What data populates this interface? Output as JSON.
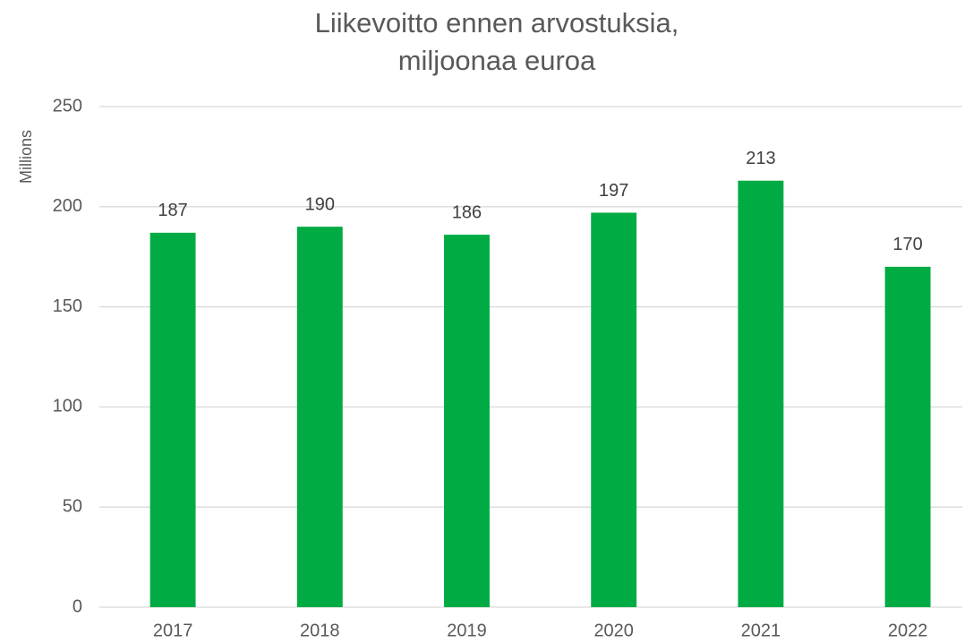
{
  "chart_data": {
    "type": "bar",
    "title": [
      "Liikevoitto ennen arvostuksia,",
      "miljoonaa euroa"
    ],
    "y_label": "Millions",
    "categories": [
      "2017",
      "2018",
      "2019",
      "2020",
      "2021",
      "2022"
    ],
    "values": [
      187,
      190,
      186,
      197,
      213,
      170
    ],
    "color": "#00ab44",
    "ylim": [
      0,
      250
    ],
    "yticks": [
      0,
      50,
      100,
      150,
      200,
      250
    ],
    "grid": true
  }
}
